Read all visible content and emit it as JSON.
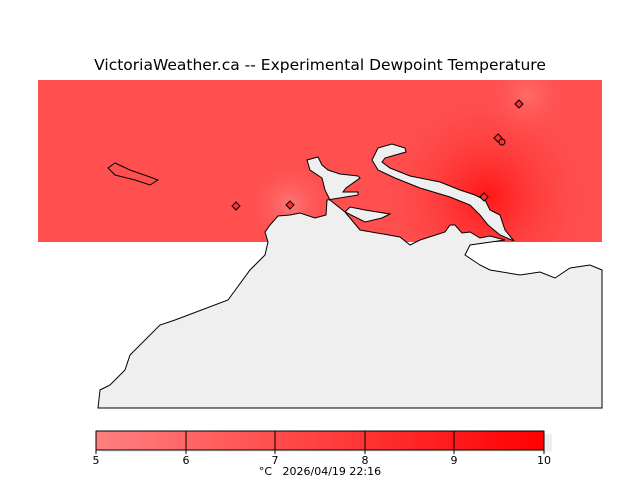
{
  "title": "VictoriaWeather.ca -- Experimental Dewpoint Temperature",
  "colorbar": {
    "ticks": [
      "5",
      "6",
      "7",
      "8",
      "9",
      "10"
    ],
    "min": 5,
    "max": 10,
    "low_color": "#ff8080",
    "high_color": "#ff0000"
  },
  "footer": {
    "unit": "°C",
    "timestamp": "2026/04/19 22:16"
  },
  "colors": {
    "land": "#efefef",
    "field_base": "#ff4d4d",
    "hotspot": "#ff1515",
    "coolspot": "#ff7575"
  }
}
